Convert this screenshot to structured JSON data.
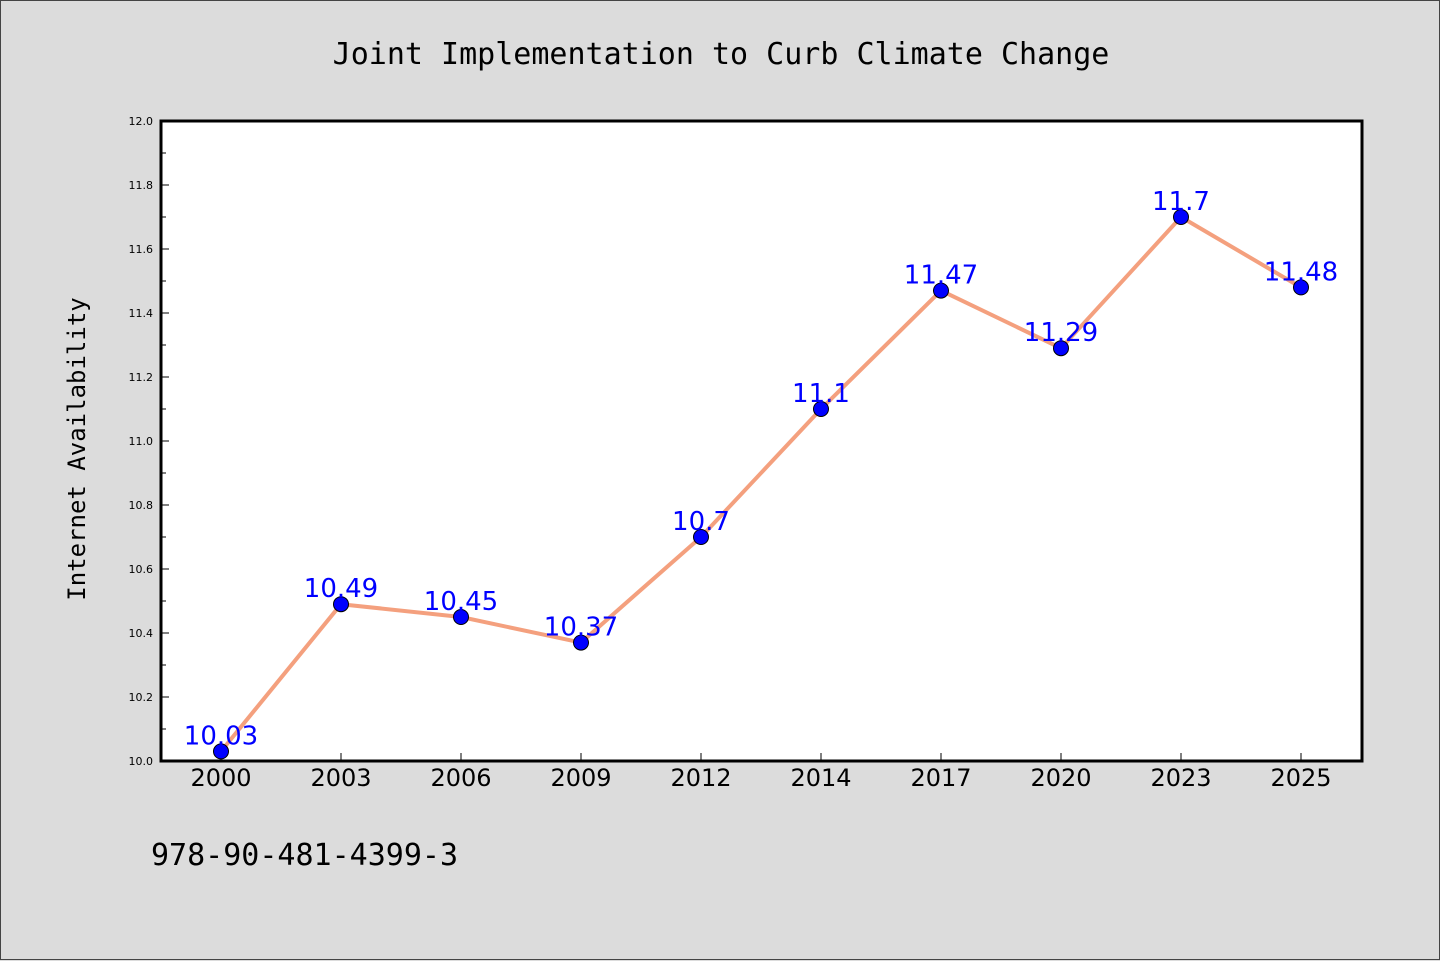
{
  "chart_data": {
    "type": "line",
    "title": "Joint Implementation to Curb Climate Change",
    "xlabel": "",
    "ylabel": "Internet Availability",
    "categories": [
      "2000",
      "2003",
      "2006",
      "2009",
      "2012",
      "2014",
      "2017",
      "2020",
      "2023",
      "2025"
    ],
    "series": [
      {
        "values": [
          10.03,
          10.49,
          10.45,
          10.37,
          10.7,
          11.1,
          11.47,
          11.29,
          11.7,
          11.48
        ],
        "data_labels": [
          "10.03",
          "10.49",
          "10.45",
          "10.37",
          "10.7",
          "11.1",
          "11.47",
          "11.29",
          "11.7",
          "11.48"
        ],
        "line_color": "#f4a07e",
        "marker_color": "#0000ff",
        "label_color": "#0000ff"
      }
    ],
    "ylim": [
      10.0,
      12.0
    ],
    "yticks": [
      "10.0",
      "10.2",
      "10.4",
      "10.6",
      "10.8",
      "11.0",
      "11.2",
      "11.4",
      "11.6",
      "11.8",
      "12.0"
    ],
    "grid": false,
    "legend": "none"
  },
  "footer": {
    "text": "978-90-481-4399-3"
  },
  "colors": {
    "background": "#dcdcdc",
    "plot_area": "#ffffff"
  }
}
